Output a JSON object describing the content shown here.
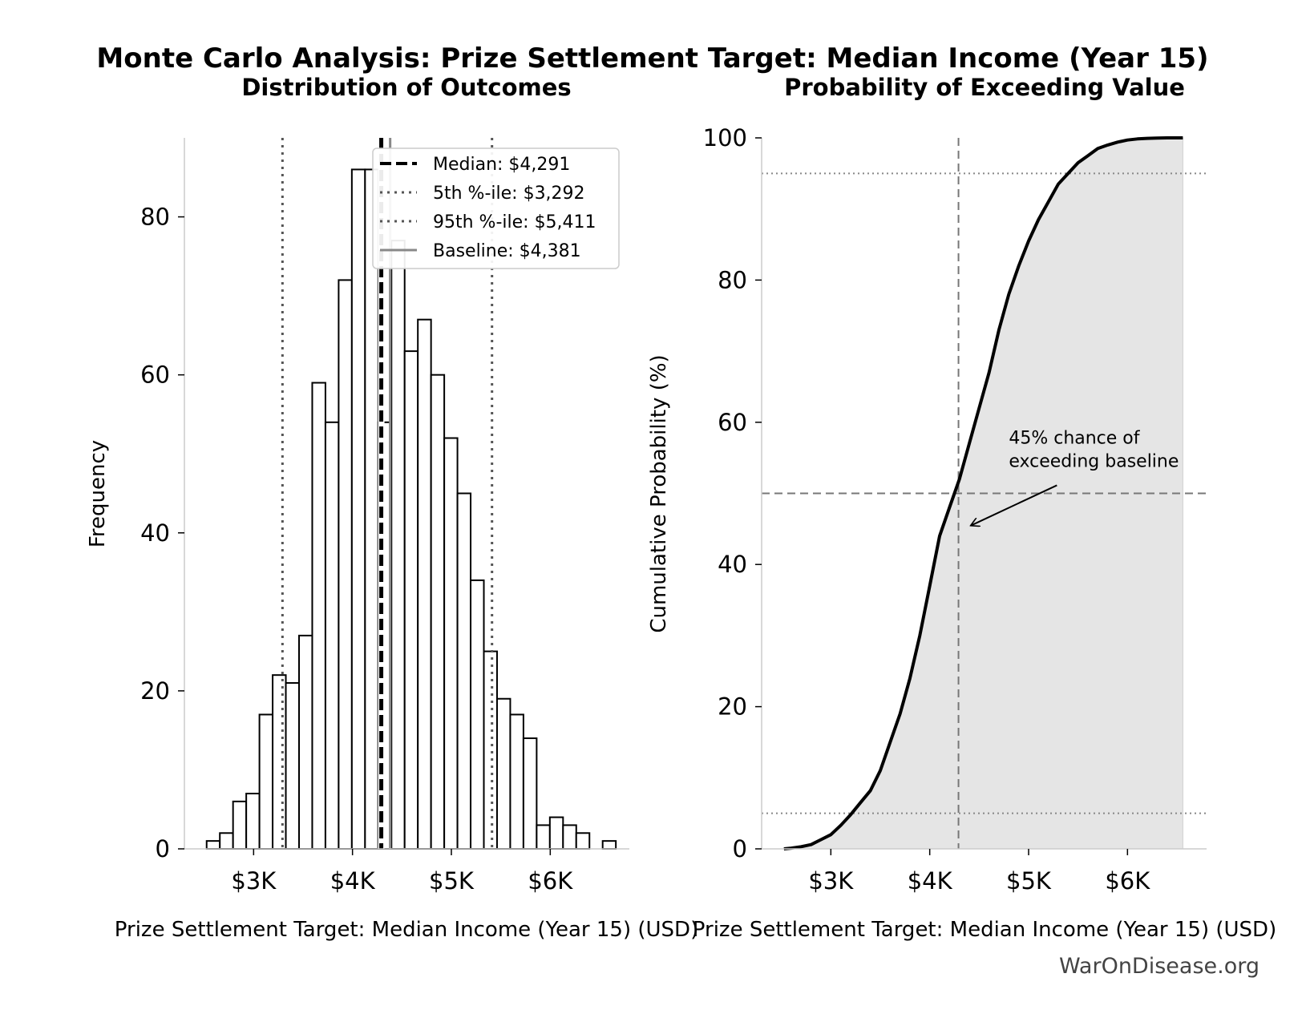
{
  "suptitle": "Monte Carlo Analysis: Prize Settlement Target: Median Income (Year 15)",
  "watermark": "WarOnDisease.org",
  "chart_data": [
    {
      "type": "bar",
      "title": "Distribution of Outcomes",
      "xlabel": "Prize Settlement Target: Median Income (Year 15) (USD)",
      "ylabel": "Frequency",
      "xlim": [
        2300,
        6800
      ],
      "ylim": [
        0,
        90
      ],
      "xticks": [
        {
          "v": 3000,
          "label": "$3K"
        },
        {
          "v": 4000,
          "label": "$4K"
        },
        {
          "v": 5000,
          "label": "$5K"
        },
        {
          "v": 6000,
          "label": "$6K"
        }
      ],
      "yticks": [
        0,
        20,
        40,
        60,
        80
      ],
      "bin_start": 2525,
      "bin_width": 133.5,
      "counts": [
        1,
        2,
        6,
        7,
        17,
        22,
        21,
        27,
        59,
        54,
        72,
        86,
        86,
        54,
        77,
        63,
        67,
        60,
        52,
        45,
        34,
        25,
        19,
        17,
        14,
        3,
        4,
        3,
        2,
        0,
        1
      ],
      "reference_lines": [
        {
          "name": "median",
          "value": 4291,
          "style": "dashed",
          "color": "#000000"
        },
        {
          "name": "p5",
          "value": 3292,
          "style": "dotted",
          "color": "#555555"
        },
        {
          "name": "p95",
          "value": 5411,
          "style": "dotted",
          "color": "#555555"
        },
        {
          "name": "baseline",
          "value": 4381,
          "style": "solid",
          "color": "#888888"
        }
      ],
      "legend": {
        "position": "upper-right",
        "entries": [
          {
            "label": "Median: $4,291",
            "style": "dashed",
            "color": "#000000"
          },
          {
            "label": "5th %-ile: $3,292",
            "style": "dotted",
            "color": "#555555"
          },
          {
            "label": "95th %-ile: $5,411",
            "style": "dotted",
            "color": "#555555"
          },
          {
            "label": "Baseline: $4,381",
            "style": "solid",
            "color": "#888888"
          }
        ]
      }
    },
    {
      "type": "line",
      "title": "Probability of Exceeding Value",
      "xlabel": "Prize Settlement Target: Median Income (Year 15) (USD)",
      "ylabel": "Cumulative Probability (%)",
      "xlim": [
        2300,
        6800
      ],
      "ylim": [
        0,
        100
      ],
      "xticks": [
        {
          "v": 3000,
          "label": "$3K"
        },
        {
          "v": 4000,
          "label": "$4K"
        },
        {
          "v": 5000,
          "label": "$5K"
        },
        {
          "v": 6000,
          "label": "$6K"
        }
      ],
      "yticks": [
        0,
        20,
        40,
        60,
        80,
        100
      ],
      "x": [
        2525,
        2600,
        2700,
        2800,
        2900,
        3000,
        3100,
        3200,
        3300,
        3400,
        3500,
        3600,
        3700,
        3800,
        3900,
        4000,
        4100,
        4200,
        4300,
        4400,
        4500,
        4600,
        4700,
        4800,
        4900,
        5000,
        5100,
        5200,
        5300,
        5400,
        5500,
        5600,
        5700,
        5800,
        5900,
        6000,
        6100,
        6200,
        6300,
        6400,
        6560
      ],
      "y": [
        0,
        0.1,
        0.3,
        0.6,
        1.3,
        2.0,
        3.3,
        4.8,
        6.5,
        8.2,
        11.0,
        15.0,
        19.0,
        24.0,
        30.0,
        37.0,
        44.0,
        48.0,
        52.0,
        57.0,
        62.0,
        67.0,
        73.0,
        78.0,
        82.0,
        85.5,
        88.5,
        91.0,
        93.5,
        95.0,
        96.5,
        97.5,
        98.5,
        99.0,
        99.4,
        99.7,
        99.85,
        99.93,
        99.97,
        100,
        100
      ],
      "reference_lines": [
        {
          "axis": "x",
          "value": 4291,
          "style": "dashed",
          "color": "#777777"
        },
        {
          "axis": "y",
          "value": 50,
          "style": "dashed",
          "color": "#777777"
        },
        {
          "axis": "y",
          "value": 5,
          "style": "dotted",
          "color": "#888888"
        },
        {
          "axis": "y",
          "value": 95,
          "style": "dotted",
          "color": "#888888"
        }
      ],
      "fill_color": "#e5e5e5",
      "annotation": {
        "text": [
          "45% chance of",
          "exceeding baseline"
        ],
        "x": 4800,
        "y": 57,
        "arrow_to_x": 4420,
        "arrow_to_y": 45.5
      }
    }
  ]
}
